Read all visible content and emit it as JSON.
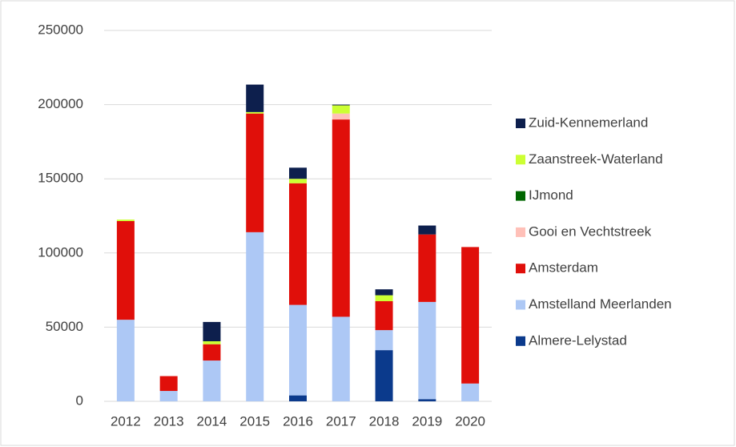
{
  "chart_data": {
    "type": "stacked_bar",
    "categories": [
      "2012",
      "2013",
      "2014",
      "2015",
      "2016",
      "2017",
      "2018",
      "2019",
      "2020"
    ],
    "series": [
      {
        "name": "Almere-Lelystad",
        "color": "#0b3a8c",
        "values": [
          0,
          0,
          0,
          0,
          4000,
          0,
          34500,
          1500,
          0
        ]
      },
      {
        "name": "Amstelland Meerlanden",
        "color": "#adc8f5",
        "values": [
          55000,
          7000,
          27500,
          114000,
          61000,
          57000,
          13500,
          65500,
          12000
        ]
      },
      {
        "name": "Amsterdam",
        "color": "#e00f0a",
        "values": [
          66500,
          10000,
          11000,
          80000,
          82000,
          133000,
          19500,
          45500,
          92000
        ]
      },
      {
        "name": "Gooi en Vechtstreek",
        "color": "#ffc0b8",
        "values": [
          0,
          0,
          0,
          0,
          0,
          4000,
          0,
          0,
          0
        ]
      },
      {
        "name": "IJmond",
        "color": "#006600",
        "values": [
          0,
          0,
          0,
          0,
          0,
          0,
          0,
          0,
          0
        ]
      },
      {
        "name": "Zaanstreek-Waterland",
        "color": "#ccff33",
        "values": [
          1000,
          0,
          2000,
          1000,
          3000,
          5500,
          4000,
          0,
          0
        ]
      },
      {
        "name": "Zuid-Kennemerland",
        "color": "#0d1f4d",
        "values": [
          0,
          0,
          13000,
          18500,
          7500,
          500,
          4000,
          6000,
          0
        ]
      }
    ],
    "ylim": [
      0,
      250000
    ],
    "yticks": [
      0,
      50000,
      100000,
      150000,
      200000,
      250000
    ],
    "grid": true,
    "legend": "right"
  }
}
